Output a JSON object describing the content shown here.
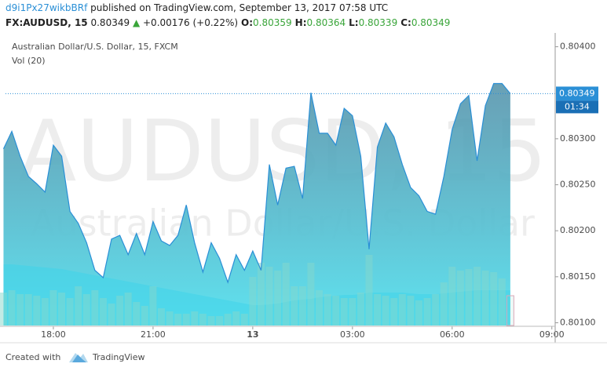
{
  "header": {
    "author": "d9i1Px27wikbBRf",
    "published": "published on TradingView.com, September 13, 2017 07:58 UTC",
    "symbol": "FX:AUDUSD, 15",
    "last": "0.80349",
    "arrow": "▲",
    "change": "+0.00176 (+0.22%)",
    "ohlc": [
      {
        "label": "O:",
        "value": "0.80359"
      },
      {
        "label": "H:",
        "value": "0.80364"
      },
      {
        "label": "L:",
        "value": "0.80339"
      },
      {
        "label": "C:",
        "value": "0.80349"
      }
    ]
  },
  "chart_data": {
    "type": "area",
    "title": "Australian Dollar/U.S. Dollar, 15, FXCM",
    "volume_title": "Vol (20)",
    "watermark": [
      "AUDUSD, 15",
      "Australian Dollar/U.S. Dollar"
    ],
    "line_color": "#2a8fd6",
    "fill_colors": [
      "#4f8fa8",
      "#5fe3f0"
    ],
    "x": [
      16.5,
      16.75,
      17,
      17.25,
      17.5,
      17.75,
      18,
      18.25,
      18.5,
      18.75,
      19,
      19.25,
      19.5,
      19.75,
      20,
      20.25,
      20.5,
      20.75,
      21,
      21.25,
      21.5,
      21.75,
      22,
      22.25,
      22.5,
      22.75,
      23,
      23.25,
      23.5,
      23.75,
      24,
      24.25,
      24.5,
      24.75,
      25,
      25.25,
      25.5,
      25.75,
      26,
      26.25,
      26.5,
      26.75,
      27,
      27.25,
      27.5,
      27.75,
      28,
      28.25,
      28.5,
      28.75,
      29,
      29.25,
      29.5,
      29.75,
      30,
      30.25,
      30.5,
      30.75,
      31,
      31.25,
      31.5,
      31.75
    ],
    "values": [
      0.80289,
      0.80308,
      0.80281,
      0.80259,
      0.80251,
      0.80242,
      0.80293,
      0.80281,
      0.80221,
      0.80208,
      0.80187,
      0.80157,
      0.80149,
      0.80191,
      0.80195,
      0.80174,
      0.80197,
      0.80174,
      0.8021,
      0.80189,
      0.80184,
      0.80195,
      0.80228,
      0.80187,
      0.80155,
      0.80187,
      0.8017,
      0.80144,
      0.80174,
      0.80157,
      0.80178,
      0.80157,
      0.80272,
      0.80228,
      0.80268,
      0.8027,
      0.80235,
      0.8035,
      0.80306,
      0.80306,
      0.80293,
      0.80333,
      0.80325,
      0.80281,
      0.8018,
      0.80291,
      0.80317,
      0.80302,
      0.80272,
      0.80247,
      0.80238,
      0.80221,
      0.80218,
      0.80259,
      0.8031,
      0.80338,
      0.80347,
      0.80276,
      0.80336,
      0.8036,
      0.8036,
      0.80349
    ],
    "volume": [
      42,
      45,
      40,
      40,
      38,
      35,
      45,
      42,
      35,
      50,
      40,
      45,
      35,
      28,
      38,
      42,
      30,
      25,
      50,
      22,
      18,
      15,
      15,
      18,
      15,
      12,
      12,
      15,
      18,
      15,
      62,
      80,
      75,
      70,
      80,
      50,
      50,
      80,
      45,
      40,
      38,
      35,
      35,
      42,
      90,
      40,
      38,
      35,
      40,
      38,
      32,
      35,
      40,
      55,
      75,
      70,
      72,
      75,
      70,
      68,
      60,
      38
    ],
    "volume_ma": [
      78,
      78,
      77,
      76,
      75,
      74,
      73,
      72,
      70,
      68,
      66,
      64,
      62,
      60,
      58,
      56,
      54,
      52,
      50,
      48,
      46,
      44,
      42,
      40,
      38,
      36,
      34,
      32,
      30,
      28,
      26,
      26,
      27,
      28,
      30,
      32,
      33,
      34,
      36,
      37,
      38,
      39,
      39,
      40,
      42,
      42,
      42,
      42,
      42,
      41,
      40,
      40,
      40,
      41,
      42,
      43,
      44,
      45,
      45,
      45,
      45,
      45
    ],
    "volume_color": "#86d8cc",
    "volume_ma_color": "#3fd4ea",
    "volume_lim": [
      0,
      100
    ],
    "xlim": [
      16.56,
      33.1
    ],
    "xticks": [
      {
        "value": 18,
        "label": "18:00"
      },
      {
        "value": 21,
        "label": "21:00"
      },
      {
        "value": 24,
        "label": "13"
      },
      {
        "value": 27,
        "label": "03:00"
      },
      {
        "value": 30,
        "label": "06:00"
      },
      {
        "value": 33,
        "label": "09:00"
      }
    ],
    "ylim": [
      0.80097,
      0.80415
    ],
    "yticks": [
      {
        "value": 0.801,
        "label": "0.80100"
      },
      {
        "value": 0.8015,
        "label": "0.80150"
      },
      {
        "value": 0.802,
        "label": "0.80200"
      },
      {
        "value": 0.8025,
        "label": "0.80250"
      },
      {
        "value": 0.803,
        "label": "0.80300"
      },
      {
        "value": 0.804,
        "label": "0.80400"
      }
    ],
    "countdown": "01:34"
  },
  "footer": {
    "created": "Created with",
    "brand": "TradingView"
  }
}
